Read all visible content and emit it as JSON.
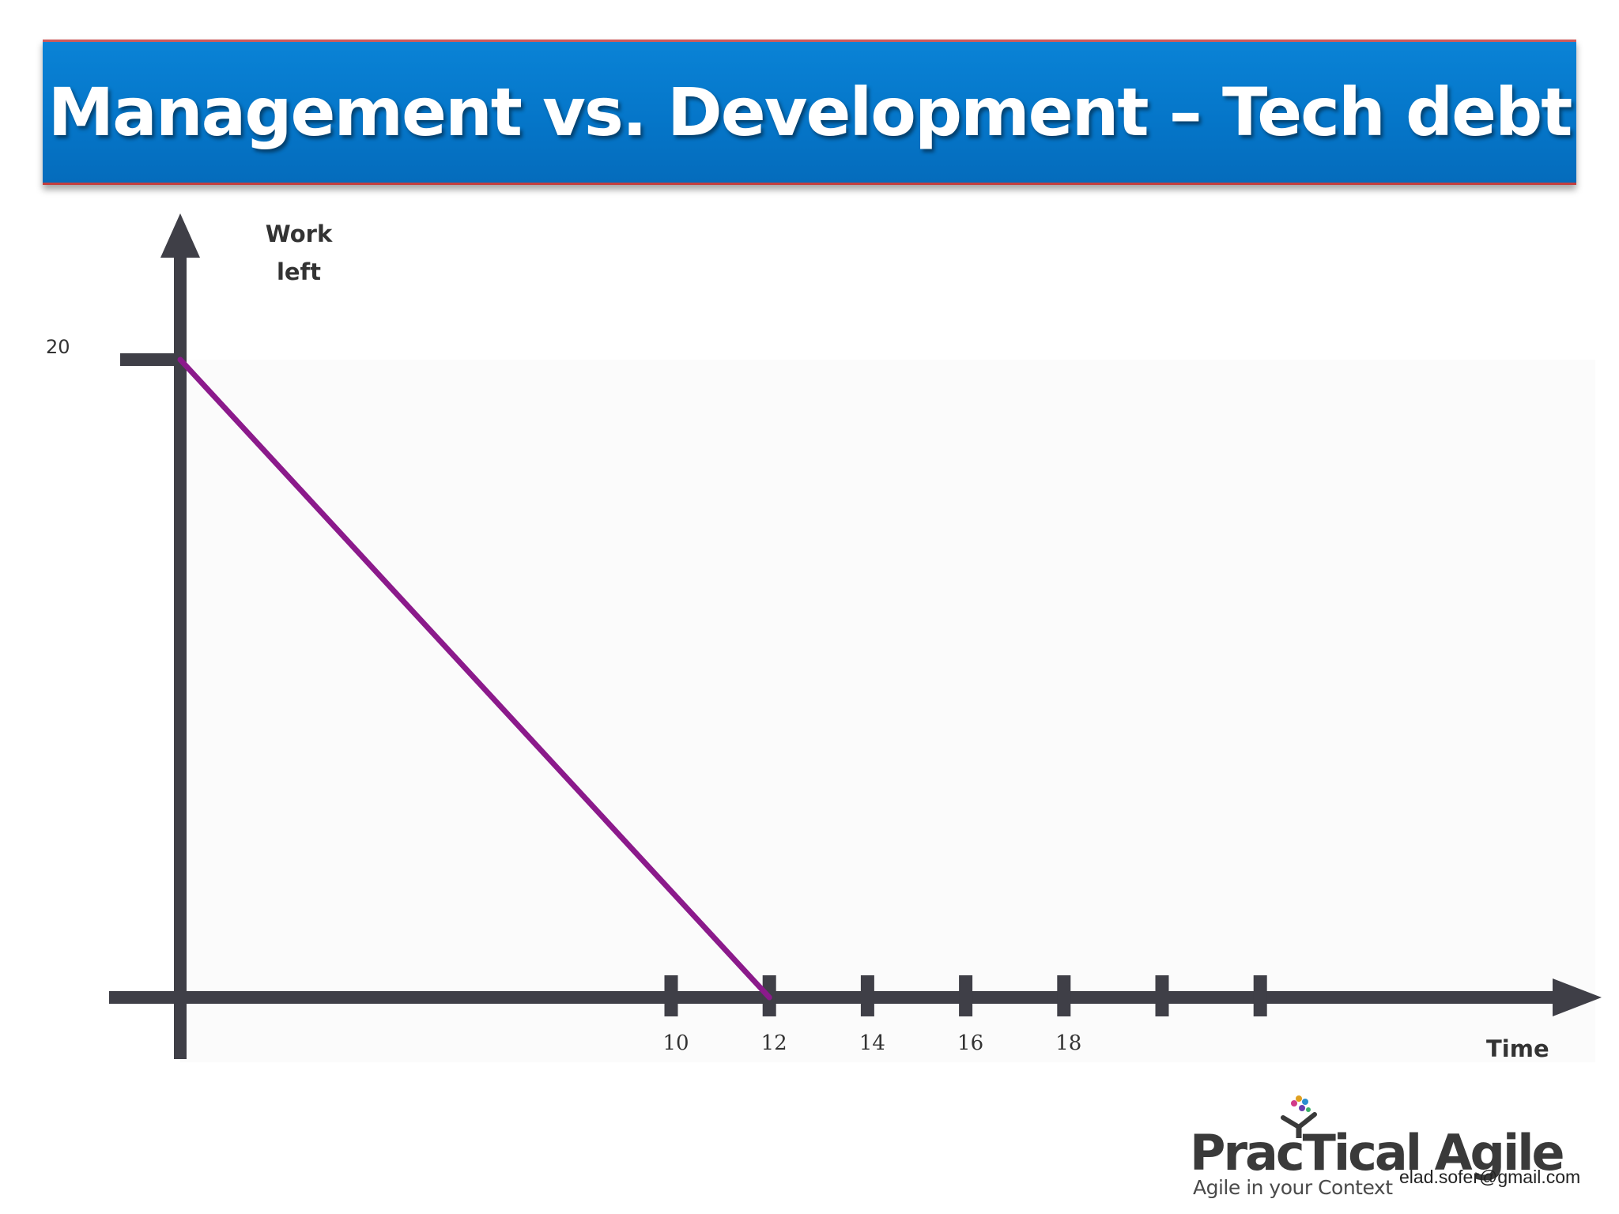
{
  "slide": {
    "title": "Management vs. Development – Tech debt"
  },
  "chart_data": {
    "type": "line",
    "title": "",
    "ylabel": "Work left",
    "xlabel": "Time",
    "xlim": [
      0,
      24
    ],
    "ylim": [
      0,
      23
    ],
    "x_ticks": [
      10,
      12,
      14,
      16,
      18,
      20,
      22
    ],
    "x_tick_labels": [
      "10",
      "12",
      "14",
      "16",
      "18",
      "",
      ""
    ],
    "y_ticks": [
      20
    ],
    "y_tick_labels": [
      "20"
    ],
    "grid": false,
    "series": [
      {
        "color": "#8b1a8b",
        "x": [
          0,
          12
        ],
        "y": [
          20,
          0
        ]
      }
    ]
  },
  "colors": {
    "title_bar": "#0576c9",
    "axis": "#3f3f47",
    "line": "#8b1a8b"
  },
  "logo": {
    "name": "PracTical Agile",
    "tagline": "Agile in your Context"
  },
  "contact": {
    "email": "elad.sofer@gmail.com"
  }
}
